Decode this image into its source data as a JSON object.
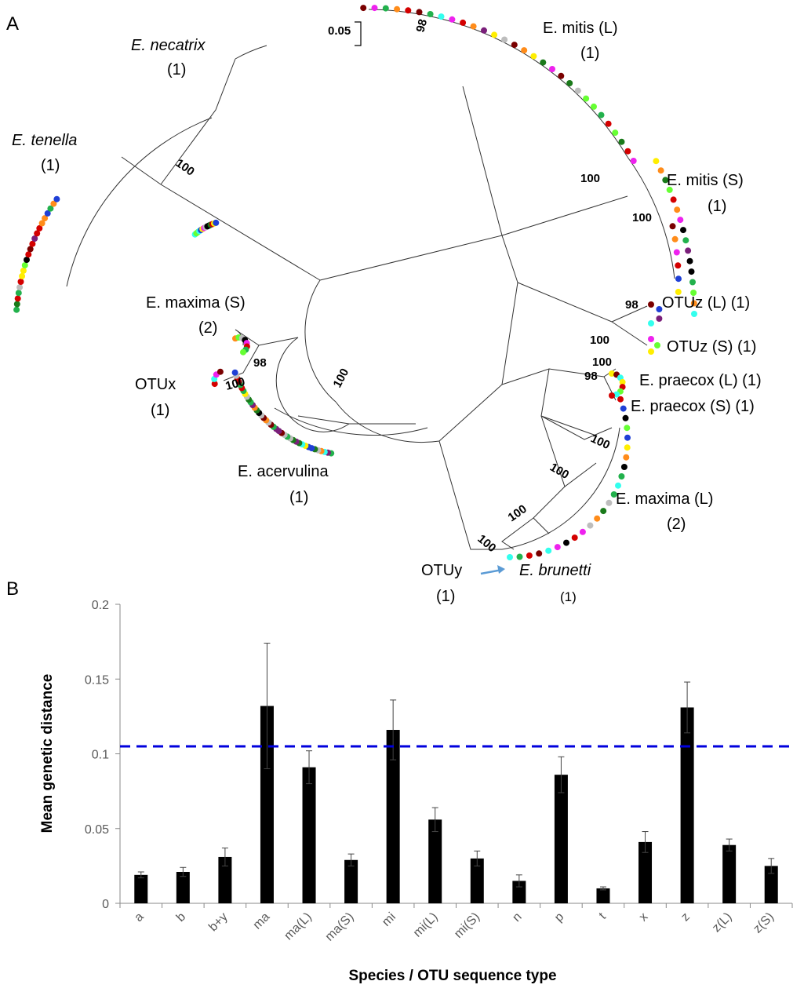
{
  "panel_a": {
    "panel_label": "A",
    "scale_bar": "0.05",
    "clade_labels": [
      {
        "name": "E. necatrix",
        "count": "(1)"
      },
      {
        "name": "E. tenella",
        "count": "(1)"
      },
      {
        "name": "E. mitis (L)",
        "count": "(1)"
      },
      {
        "name": "E. mitis (S)",
        "count": "(1)"
      },
      {
        "name": "OTUz (L) (1)"
      },
      {
        "name": "OTUz (S) (1)"
      },
      {
        "name": "E. praecox (L) (1)"
      },
      {
        "name": "E. praecox (S) (1)"
      },
      {
        "name": "E. maxima (S)",
        "count": "(2)"
      },
      {
        "name": "OTUx",
        "count": "(1)"
      },
      {
        "name": "E. acervulina",
        "count": "(1)"
      },
      {
        "name": "E. maxima (L)",
        "count": "(2)"
      },
      {
        "name": "OTUy",
        "count": "(1)"
      },
      {
        "name": "E. brunetti",
        "count": "(1)"
      }
    ],
    "bootstrap_values": [
      "100",
      "98",
      "100",
      "100",
      "98",
      "100",
      "100",
      "98",
      "100",
      "98",
      "100",
      "100",
      "100",
      "100",
      "100",
      "100"
    ],
    "tip_colors": [
      "#bdbdbd",
      "#22b14c",
      "#1a7a1a",
      "#ff8c1a",
      "#000000",
      "#d40000",
      "#7a0000",
      "#ee22ee",
      "#ffee00",
      "#1f3fd6",
      "#7a1f7a",
      "#33ffee",
      "#66ff33"
    ]
  },
  "chart_data": {
    "type": "bar",
    "panel_label": "B",
    "categories": [
      "a",
      "b",
      "b+y",
      "ma",
      "ma(L)",
      "ma(S)",
      "mi",
      "mi(L)",
      "mi(S)",
      "n",
      "p",
      "t",
      "x",
      "z",
      "z(L)",
      "z(S)"
    ],
    "values": [
      0.019,
      0.021,
      0.031,
      0.132,
      0.091,
      0.029,
      0.116,
      0.056,
      0.03,
      0.015,
      0.086,
      0.01,
      0.041,
      0.131,
      0.039,
      0.025
    ],
    "errors": [
      0.002,
      0.003,
      0.006,
      0.042,
      0.011,
      0.004,
      0.02,
      0.008,
      0.005,
      0.004,
      0.012,
      0.001,
      0.007,
      0.017,
      0.004,
      0.005
    ],
    "ylim": [
      0,
      0.2
    ],
    "yticks": [
      "0",
      "0.05",
      "0.1",
      "0.15",
      "0.2"
    ],
    "ylabel": "Mean genetic distance",
    "xlabel": "Species / OTU sequence type",
    "threshold": 0.105,
    "bar_color": "#000000",
    "threshold_color": "#0000dd"
  }
}
